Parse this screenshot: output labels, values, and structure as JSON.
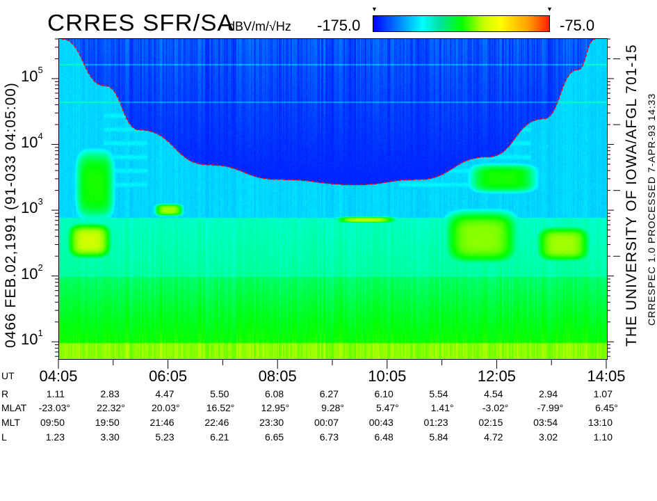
{
  "header": {
    "title": "CRRES SFR/SA",
    "units": "dBV/m/√Hz",
    "color_min_label": "-175.0",
    "color_max_label": "-75.0"
  },
  "left_caption": "0466  FEB.02,1991  (91-033 04:05:00)",
  "right_caption": "THE UNIVERSITY OF IOWA/AFGL 701-15",
  "right_caption2": "CRRESPEC 1.0  PROCESSED  7-APR-93  14:33",
  "chart_data": {
    "type": "heatmap",
    "title": "CRRES SFR/SA",
    "colorbar": {
      "label": "dBV/m/√Hz",
      "min": -175.0,
      "max": -75.0,
      "colors": [
        "#0000ff",
        "#00ffff",
        "#00ff00",
        "#ffff00",
        "#ff2000"
      ]
    },
    "x_axis": {
      "label": "UT",
      "range": [
        "04:05",
        "14:05"
      ],
      "tick_labels": [
        "04:05",
        "06:05",
        "08:05",
        "10:05",
        "12:05",
        "14:05"
      ],
      "minor_tick_interval_minutes": 60
    },
    "y_axis": {
      "scale": "log",
      "unit": "Hz",
      "range": [
        5.6,
        410000
      ],
      "tick_labels": [
        {
          "base": "10",
          "exp": "1"
        },
        {
          "base": "10",
          "exp": "2"
        },
        {
          "base": "10",
          "exp": "3"
        },
        {
          "base": "10",
          "exp": "4"
        },
        {
          "base": "10",
          "exp": "5"
        }
      ]
    },
    "overlay_curve": {
      "color": "#ff0000",
      "style": "dashed",
      "points": [
        {
          "t": "04:08",
          "f": 410000
        },
        {
          "t": "04:55",
          "f": 80000
        },
        {
          "t": "05:33",
          "f": 17000
        },
        {
          "t": "06:49",
          "f": 5000
        },
        {
          "t": "08:06",
          "f": 3000
        },
        {
          "t": "09:30",
          "f": 2500
        },
        {
          "t": "10:38",
          "f": 3000
        },
        {
          "t": "11:54",
          "f": 6600
        },
        {
          "t": "12:55",
          "f": 25000
        },
        {
          "t": "13:33",
          "f": 140000
        },
        {
          "t": "13:52",
          "f": 410000
        }
      ]
    }
  },
  "ephemeris": {
    "rows": [
      {
        "label": "R",
        "values": [
          "1.11",
          "2.83",
          "4.47",
          "5.50",
          "6.08",
          "6.27",
          "6.10",
          "5.54",
          "4.54",
          "2.94",
          "1.07"
        ]
      },
      {
        "label": "MLAT",
        "values": [
          "-23.03°",
          "22.32°",
          "20.03°",
          "16.52°",
          "12.95°",
          "9.28°",
          "5.47°",
          "1.41°",
          "-3.02°",
          "-7.99°",
          "6.45°"
        ]
      },
      {
        "label": "MLT",
        "values": [
          "09:50",
          "19:50",
          "21:46",
          "22:46",
          "23:30",
          "00:07",
          "00:43",
          "01:23",
          "02:15",
          "03:54",
          "13:10"
        ]
      },
      {
        "label": "L",
        "values": [
          "1.23",
          "3.30",
          "5.23",
          "6.21",
          "6.65",
          "6.73",
          "6.48",
          "5.84",
          "4.72",
          "3.02",
          "1.10"
        ]
      }
    ],
    "ut_label": "UT"
  }
}
